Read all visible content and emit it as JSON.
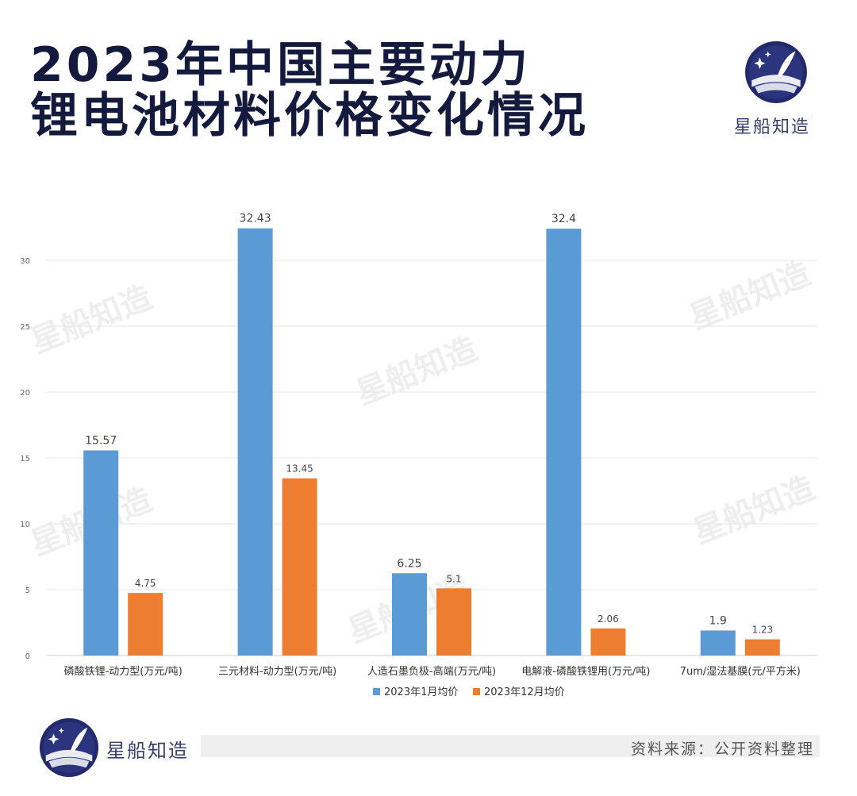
{
  "header": {
    "title_line1": "2023年中国主要动力",
    "title_line2": "锂电池材料价格变化情况",
    "brand_name": "星船知造",
    "logo_icon": "quill-moon-logo-icon"
  },
  "footer": {
    "brand_name": "星船知造",
    "source": "资料来源：公开资料整理"
  },
  "watermark_text": "星船知造",
  "chart_data": {
    "type": "bar",
    "categories": [
      "磷酸铁锂-动力型(万元/吨)",
      "三元材料-动力型(万元/吨)",
      "人造石墨负极-高端(万元/吨)",
      "电解液-磷酸铁锂用(万元/吨)",
      "7um/湿法基膜(元/平方米)"
    ],
    "series": [
      {
        "name": "2023年1月均价",
        "values": [
          15.57,
          32.43,
          6.25,
          32.4,
          1.9
        ],
        "labels": [
          "15.57",
          "32.43",
          "6.25",
          "32.4",
          "1.9"
        ],
        "color": "#5b9bd5"
      },
      {
        "name": "2023年12月均价",
        "values": [
          4.75,
          13.45,
          5.1,
          2.06,
          1.23
        ],
        "labels": [
          "4.75",
          "13.45",
          "5.1",
          "2.06",
          "1.23"
        ],
        "color": "#ed7d31"
      }
    ],
    "yticks": [
      0,
      5,
      10,
      15,
      20,
      25,
      30
    ],
    "ylim": [
      0,
      35
    ],
    "grid": true,
    "legend": "bottom",
    "title": "",
    "xlabel": "",
    "ylabel": ""
  }
}
